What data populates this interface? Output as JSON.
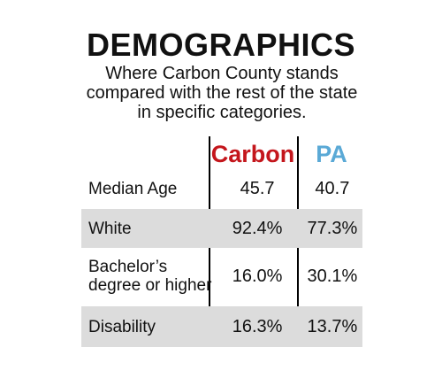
{
  "title": "DEMOGRAPHICS",
  "subtitle": "Where Carbon County stands compared with the rest of the state in specific categories.",
  "colors": {
    "carbon": "#c4161c",
    "pa": "#5aa9d6",
    "shade": "#dcdcdc"
  },
  "chart_data": {
    "type": "table",
    "columns": [
      "Carbon",
      "PA"
    ],
    "rows": [
      {
        "label": "Median Age",
        "carbon": "45.7",
        "pa": "40.7",
        "shaded": false
      },
      {
        "label": "White",
        "carbon": "92.4%",
        "pa": "77.3%",
        "shaded": true
      },
      {
        "label": "Bachelor’s degree or higher",
        "carbon": "16.0%",
        "pa": "30.1%",
        "shaded": false
      },
      {
        "label": "Disability",
        "carbon": "16.3%",
        "pa": "13.7%",
        "shaded": true
      }
    ]
  }
}
